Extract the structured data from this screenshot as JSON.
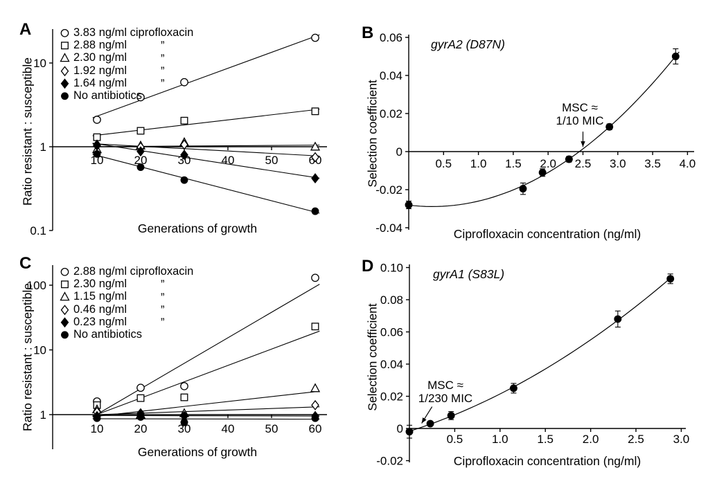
{
  "figure": {
    "background": "#ffffff",
    "ink": "#000000"
  },
  "chart_data": [
    {
      "id": "A",
      "panel_label": "A",
      "type": "scatter",
      "y_scale": "log",
      "xlabel": "Generations of growth",
      "ylabel": "Ratio resistant : susceptible",
      "xlim": [
        0,
        63
      ],
      "ylim": [
        0.1,
        25
      ],
      "x_axis_at_y": 1,
      "x_ticks": [
        10,
        20,
        30,
        40,
        50,
        60
      ],
      "x_tick_labels": [
        "10",
        "20",
        "30",
        "40",
        "50",
        "60"
      ],
      "y_ticks": [
        0.1,
        1,
        10
      ],
      "y_tick_labels": [
        "0.1",
        "1",
        "10"
      ],
      "x": [
        10,
        20,
        30,
        60
      ],
      "trend": "log-linear",
      "series": [
        {
          "name": "3.83 ng/ml ciprofloxacin",
          "marker": "circle-open",
          "values": [
            2.1,
            3.9,
            5.9,
            20
          ]
        },
        {
          "name": "2.88 ng/ml ciprofloxacin",
          "marker": "square-open",
          "values": [
            1.3,
            1.55,
            2.05,
            2.65
          ]
        },
        {
          "name": "2.30 ng/ml ciprofloxacin",
          "marker": "triangle-open",
          "values": [
            0.93,
            1.03,
            1.13,
            1.0
          ]
        },
        {
          "name": "1.92 ng/ml ciprofloxacin",
          "marker": "diamond-open",
          "values": [
            1.03,
            0.99,
            1.06,
            0.75
          ]
        },
        {
          "name": "1.64 ng/ml ciprofloxacin",
          "marker": "diamond-filled",
          "values": [
            1.06,
            0.88,
            0.8,
            0.42
          ]
        },
        {
          "name": "No antibiotics",
          "marker": "circle-filled",
          "values": [
            0.82,
            0.57,
            0.4,
            0.17
          ]
        }
      ],
      "legend_items": [
        {
          "marker": "circle-open",
          "label": "3.83 ng/ml ciprofloxacin",
          "ditto": ""
        },
        {
          "marker": "square-open",
          "label": "2.88 ng/ml",
          "ditto": "”"
        },
        {
          "marker": "triangle-open",
          "label": "2.30 ng/ml",
          "ditto": "”"
        },
        {
          "marker": "diamond-open",
          "label": "1.92 ng/ml",
          "ditto": "”"
        },
        {
          "marker": "diamond-filled",
          "label": "1.64 ng/ml",
          "ditto": "”"
        },
        {
          "marker": "circle-filled",
          "label": "No antibiotics",
          "ditto": ""
        }
      ]
    },
    {
      "id": "B",
      "panel_label": "B",
      "type": "scatter",
      "fit": "quadratic",
      "title": "gyrA2 (D87N)",
      "xlabel": "Ciprofloxacin concentration (ng/ml)",
      "ylabel": "Selection coefficient",
      "xlim": [
        0,
        4.05
      ],
      "ylim": [
        -0.04,
        0.06
      ],
      "x_ticks": [
        0.5,
        1.0,
        1.5,
        2.0,
        2.5,
        3.0,
        3.5,
        4.0
      ],
      "x_tick_labels": [
        "0.5",
        "1.0",
        "1.5",
        "2.0",
        "2.5",
        "3.0",
        "3.5",
        "4.0"
      ],
      "y_ticks": [
        0.06,
        0.04,
        0.02,
        0,
        -0.02,
        -0.04
      ],
      "y_tick_labels": [
        "0.06",
        "0.04",
        "0.02",
        "0",
        "-0.02",
        "-0.04"
      ],
      "marker": "circle-filled",
      "x": [
        0,
        1.64,
        1.92,
        2.3,
        2.88,
        3.83
      ],
      "y": [
        -0.028,
        -0.0195,
        -0.011,
        -0.004,
        0.013,
        0.05
      ],
      "yerr": [
        0.002,
        0.003,
        0.002,
        0.0015,
        0.0015,
        0.004
      ],
      "annotation": {
        "line1": "MSC ≈",
        "line2": "1/10 MIC",
        "arrow_from": [
          2.5,
          0.0105
        ],
        "arrow_to": [
          2.5,
          0.0025
        ]
      }
    },
    {
      "id": "C",
      "panel_label": "C",
      "type": "scatter",
      "y_scale": "log",
      "xlabel": "Generations of growth",
      "ylabel": "Ratio resistant : susceptible",
      "xlim": [
        0,
        63
      ],
      "ylim": [
        0.29,
        205
      ],
      "x_axis_at_y": 1,
      "x_ticks": [
        10,
        20,
        30,
        40,
        50,
        60
      ],
      "x_tick_labels": [
        "10",
        "20",
        "30",
        "40",
        "50",
        "60"
      ],
      "y_ticks": [
        1,
        10,
        100
      ],
      "y_tick_labels": [
        "1",
        "10",
        "100"
      ],
      "x": [
        10,
        20,
        30,
        60
      ],
      "trend": "log-linear",
      "series": [
        {
          "name": "2.88 ng/ml ciprofloxacin",
          "marker": "circle-open",
          "values": [
            1.6,
            2.6,
            2.75,
            130
          ]
        },
        {
          "name": "2.30 ng/ml ciprofloxacin",
          "marker": "square-open",
          "values": [
            1.4,
            1.8,
            1.85,
            23
          ]
        },
        {
          "name": "1.15 ng/ml ciprofloxacin",
          "marker": "triangle-open",
          "values": [
            1.2,
            1.0,
            1.05,
            2.55
          ]
        },
        {
          "name": "0.46 ng/ml ciprofloxacin",
          "marker": "diamond-open",
          "values": [
            1.1,
            1.05,
            0.95,
            1.4
          ]
        },
        {
          "name": "0.23 ng/ml ciprofloxacin",
          "marker": "diamond-filled",
          "values": [
            0.95,
            1.0,
            0.95,
            0.95
          ]
        },
        {
          "name": "No antibiotics",
          "marker": "circle-filled",
          "values": [
            0.88,
            0.92,
            0.76,
            0.88
          ]
        }
      ],
      "legend_items": [
        {
          "marker": "circle-open",
          "label": "2.88 ng/ml ciprofloxacin",
          "ditto": ""
        },
        {
          "marker": "square-open",
          "label": "2.30 ng/ml",
          "ditto": "”"
        },
        {
          "marker": "triangle-open",
          "label": "1.15 ng/ml",
          "ditto": "”"
        },
        {
          "marker": "diamond-open",
          "label": "0.46 ng/ml",
          "ditto": "”"
        },
        {
          "marker": "diamond-filled",
          "label": "0.23 ng/ml",
          "ditto": "”"
        },
        {
          "marker": "circle-filled",
          "label": "No antibiotics",
          "ditto": ""
        }
      ]
    },
    {
      "id": "D",
      "panel_label": "D",
      "type": "scatter",
      "fit": "quadratic",
      "title": "gyrA1 (S83L)",
      "xlabel": "Ciprofloxacin concentration (ng/ml)",
      "ylabel": "Selection coefficient",
      "xlim": [
        0,
        3.05
      ],
      "ylim": [
        -0.02,
        0.1
      ],
      "x_ticks": [
        0.5,
        1.0,
        1.5,
        2.0,
        2.5,
        3.0
      ],
      "x_tick_labels": [
        "0.5",
        "1.0",
        "1.5",
        "2.0",
        "2.5",
        "3.0"
      ],
      "y_ticks": [
        0.1,
        0.08,
        0.06,
        0.04,
        0.02,
        0,
        -0.02
      ],
      "y_tick_labels": [
        "0.10",
        "0.08",
        "0.06",
        "0.04",
        "0.02",
        "0",
        "-0.02"
      ],
      "marker": "circle-filled",
      "x": [
        0,
        0.23,
        0.46,
        1.15,
        2.3,
        2.88
      ],
      "y": [
        -0.002,
        0.003,
        0.008,
        0.025,
        0.068,
        0.093
      ],
      "yerr": [
        0.004,
        0.0015,
        0.0025,
        0.003,
        0.005,
        0.003
      ],
      "annotation": {
        "line1": "MSC ≈",
        "line2": "1/230 MIC",
        "arrow_from": [
          0.25,
          0.0135
        ],
        "arrow_to": [
          0.135,
          0.0032
        ]
      }
    }
  ]
}
